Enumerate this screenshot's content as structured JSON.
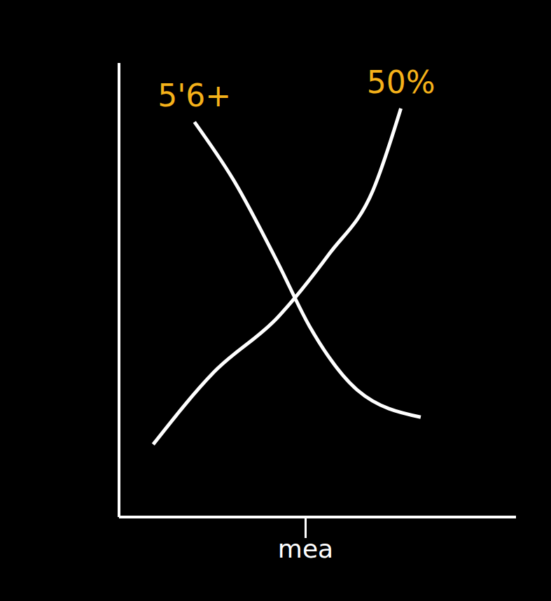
{
  "chart_data": {
    "type": "line",
    "xlim": [
      0,
      10
    ],
    "ylim": [
      0,
      10
    ],
    "xticks": [
      {
        "value": 4.7,
        "label": "mea"
      }
    ],
    "yticks": [],
    "tick_labels": "x",
    "grid": false,
    "series": [
      {
        "name": "5'6+",
        "color": "#ffffff",
        "x": [
          1.9,
          2.9,
          4.0,
          4.8,
          6.0,
          7.6
        ],
        "values": [
          8.7,
          7.4,
          5.6,
          4.2,
          2.8,
          2.2
        ]
      },
      {
        "name": "50%",
        "color": "#ffffff",
        "x": [
          0.86,
          2.4,
          4.0,
          5.3,
          6.4,
          7.1
        ],
        "values": [
          1.6,
          3.2,
          4.4,
          5.8,
          7.2,
          9.0
        ]
      }
    ]
  }
}
